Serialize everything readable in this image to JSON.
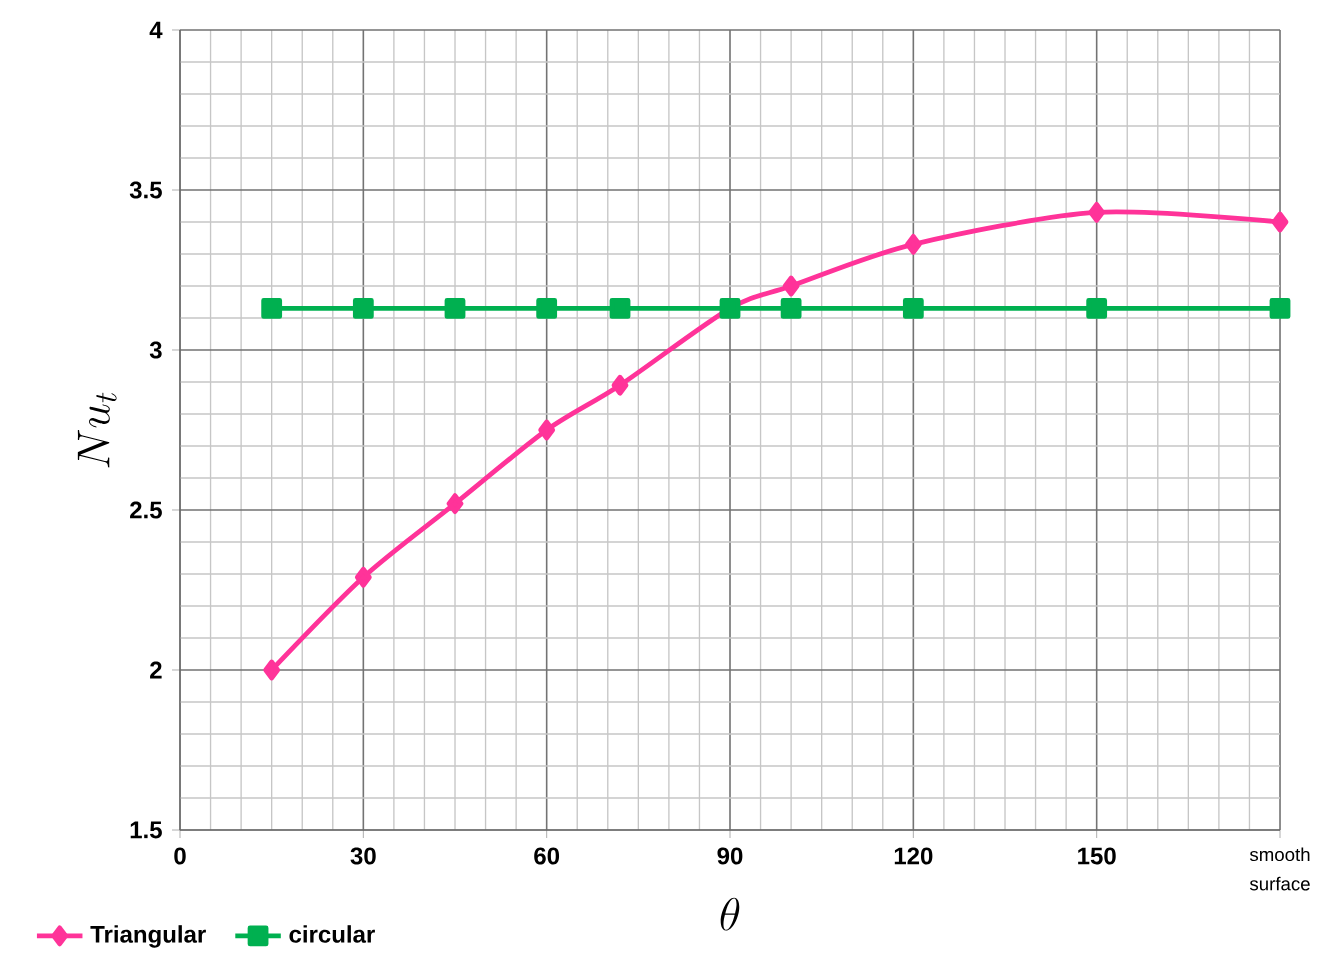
{
  "chart_data": {
    "type": "line",
    "xlabel": "\\theta",
    "ylabel": "Nu_t",
    "x": [
      15,
      30,
      45,
      60,
      72,
      90,
      100,
      120,
      150,
      180
    ],
    "series": [
      {
        "name": "Triangular",
        "color": "#ff3399",
        "marker": "diamond",
        "values": [
          2.0,
          2.29,
          2.52,
          2.75,
          2.89,
          3.13,
          3.2,
          3.33,
          3.43,
          3.4
        ]
      },
      {
        "name": "circular",
        "color": "#00b050",
        "marker": "square",
        "values": [
          3.13,
          3.13,
          3.13,
          3.13,
          3.13,
          3.13,
          3.13,
          3.13,
          3.13,
          3.13
        ]
      }
    ],
    "xlim": [
      0,
      180
    ],
    "ylim": [
      1.5,
      4
    ],
    "xticks": [
      0,
      30,
      60,
      90,
      120,
      150,
      {
        "value": 180,
        "label": "smooth surface"
      }
    ],
    "yticks": [
      1.5,
      2,
      2.5,
      3,
      3.5,
      4
    ],
    "grid": true,
    "legend": "bottom left",
    "line_style": "solid"
  }
}
